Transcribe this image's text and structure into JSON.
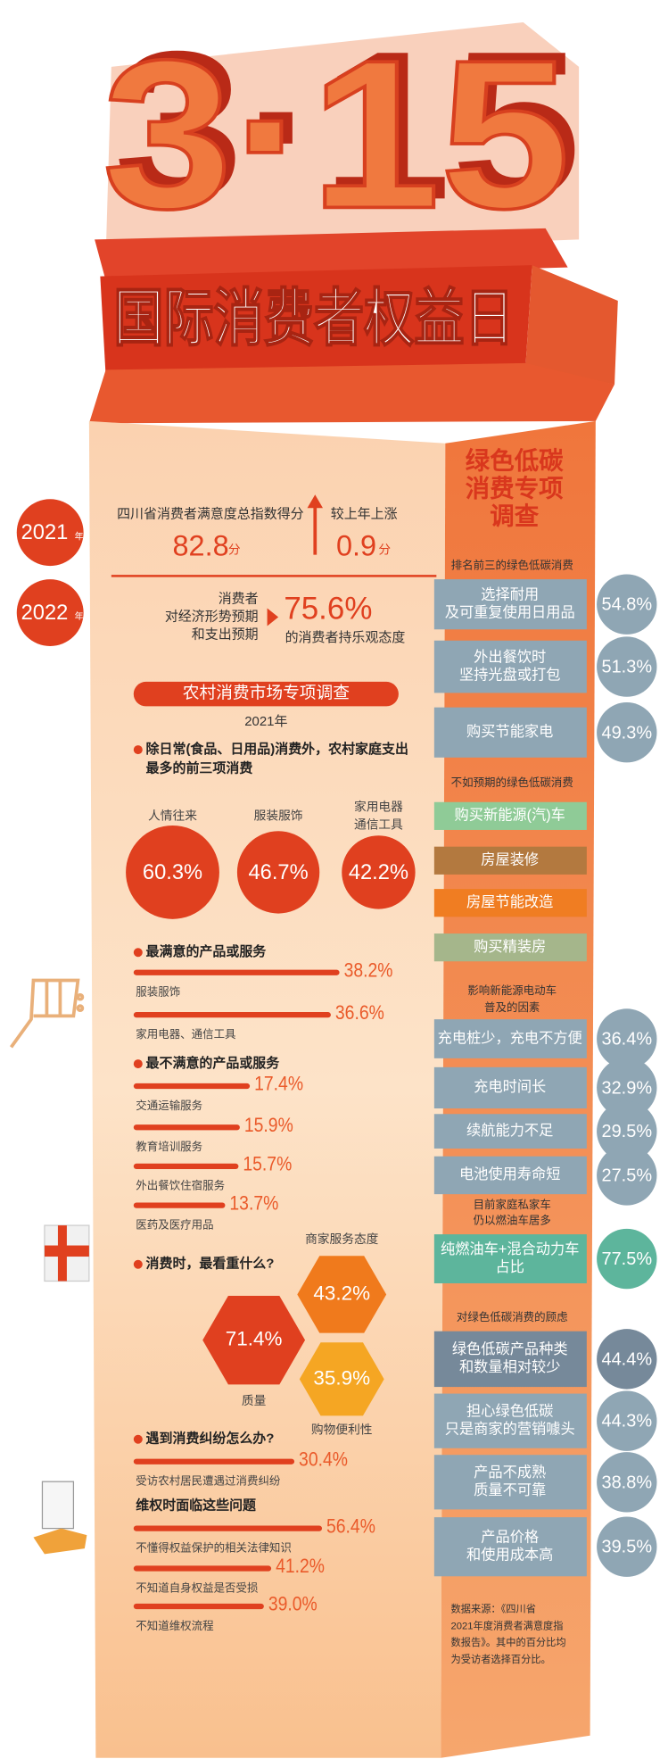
{
  "header": {
    "event": "3·15",
    "title": "国际消费者权益日"
  },
  "index_2021": {
    "year": "2021",
    "year_unit": "年",
    "label": "四川省消费者满意度总指数得分",
    "score": "82.8",
    "score_unit": "分",
    "change_label": "较上年上涨",
    "change": "0.9",
    "change_unit": "分"
  },
  "outlook_2022": {
    "year": "2022",
    "year_unit": "年",
    "label_lines": [
      "消费者",
      "对经济形势预期",
      "和支出预期"
    ],
    "value": "75.6%",
    "value_text": "的消费者持乐观态度"
  },
  "rural_survey": {
    "title": "农村消费市场专项调查",
    "year": "2021年",
    "top_spending": {
      "heading_lines": [
        "除日常(食品、日用品)消费外，农村家庭支出",
        "最多的前三项消费"
      ],
      "items": [
        {
          "label_lines": [
            "人情往来"
          ],
          "value": "60.3%"
        },
        {
          "label_lines": [
            "服装服饰"
          ],
          "value": "46.7%"
        },
        {
          "label_lines": [
            "家用电器",
            "通信工具"
          ],
          "value": "42.2%"
        }
      ]
    },
    "most_satisfied": {
      "heading": "最满意的产品或服务",
      "items": [
        {
          "label": "服装服饰",
          "value": 38.2,
          "value_label": "38.2%"
        },
        {
          "label": "家用电器、通信工具",
          "value": 36.6,
          "value_label": "36.6%"
        }
      ]
    },
    "least_satisfied": {
      "heading": "最不满意的产品或服务",
      "items": [
        {
          "label": "交通运输服务",
          "value": 17.4,
          "value_label": "17.4%"
        },
        {
          "label": "教育培训服务",
          "value": 15.9,
          "value_label": "15.9%"
        },
        {
          "label": "外出餐饮住宿服务",
          "value": 15.7,
          "value_label": "15.7%"
        },
        {
          "label": "医药及医疗用品",
          "value": 13.7,
          "value_label": "13.7%"
        }
      ]
    },
    "priorities": {
      "heading": "消费时，最看重什么?",
      "items": [
        {
          "label": "质量",
          "value": "71.4%"
        },
        {
          "label": "商家服务态度",
          "value": "43.2%"
        },
        {
          "label": "购物便利性",
          "value": "35.9%"
        }
      ]
    },
    "disputes": {
      "heading": "遇到消费纠纷怎么办?",
      "items": [
        {
          "label": "受访农村居民遭遇过消费纠纷",
          "value": 30.4,
          "value_label": "30.4%"
        }
      ],
      "subheading": "维权时面临这些问题",
      "problems": [
        {
          "label": "不懂得权益保护的相关法律知识",
          "value": 56.4,
          "value_label": "56.4%"
        },
        {
          "label": "不知道自身权益是否受损",
          "value": 41.2,
          "value_label": "41.2%"
        },
        {
          "label": "不知道维权流程",
          "value": 39.0,
          "value_label": "39.0%"
        }
      ]
    }
  },
  "green_survey": {
    "title_lines": [
      "绿色低碳",
      "消费专项",
      "调查"
    ],
    "groups": [
      {
        "heading_lines": [
          "排名前三的绿色低碳消费"
        ],
        "items": [
          {
            "lines": [
              "选择耐用",
              "及可重复使用日用品"
            ],
            "value": "54.8%",
            "color": "#8fa6b4"
          },
          {
            "lines": [
              "外出餐饮时",
              "坚持光盘或打包"
            ],
            "value": "51.3%",
            "color": "#8fa6b4"
          },
          {
            "lines": [
              "购买节能家电"
            ],
            "value": "49.3%",
            "color": "#8fa6b4"
          }
        ]
      },
      {
        "heading_lines": [
          "不如预期的绿色低碳消费"
        ],
        "items": [
          {
            "lines": [
              "购买新能源(汽)车"
            ],
            "color": "#8fcb97"
          },
          {
            "lines": [
              "房屋装修"
            ],
            "color": "#b3793f"
          },
          {
            "lines": [
              "房屋节能改造"
            ],
            "color": "#f07d22"
          },
          {
            "lines": [
              "购买精装房"
            ],
            "color": "#a5b68b"
          }
        ]
      },
      {
        "heading_lines": [
          "影响新能源电动车",
          "普及的因素"
        ],
        "items": [
          {
            "lines": [
              "充电桩少，充电不方便"
            ],
            "value": "36.4%",
            "color": "#8fa6b4"
          },
          {
            "lines": [
              "充电时间长"
            ],
            "value": "32.9%",
            "color": "#8fa6b4"
          },
          {
            "lines": [
              "续航能力不足"
            ],
            "value": "29.5%",
            "color": "#8fa6b4"
          },
          {
            "lines": [
              "电池使用寿命短"
            ],
            "value": "27.5%",
            "color": "#8fa6b4"
          }
        ]
      },
      {
        "heading_lines": [
          "目前家庭私家车",
          "仍以燃油车居多"
        ],
        "items": [
          {
            "lines": [
              "纯燃油车+混合动力车",
              "占比"
            ],
            "value": "77.5%",
            "color": "#5db59c"
          }
        ]
      },
      {
        "heading_lines": [
          "对绿色低碳消费的顾虑"
        ],
        "items": [
          {
            "lines": [
              "绿色低碳产品种类",
              "和数量相对较少"
            ],
            "value": "44.4%",
            "color": "#76899a"
          },
          {
            "lines": [
              "担心绿色低碳",
              "只是商家的营销噱头"
            ],
            "value": "44.3%",
            "color": "#8fa6b4"
          },
          {
            "lines": [
              "产品不成熟",
              "质量不可靠"
            ],
            "value": "38.8%",
            "color": "#8fa6b4"
          },
          {
            "lines": [
              "产品价格",
              "和使用成本高"
            ],
            "value": "39.5%",
            "color": "#8fa6b4"
          }
        ]
      }
    ],
    "source_lines": [
      "数据来源：《四川省",
      "2021年度消费者满意度指",
      "数报告》。其中的百分比均",
      "为受访者选择百分比。"
    ]
  }
}
